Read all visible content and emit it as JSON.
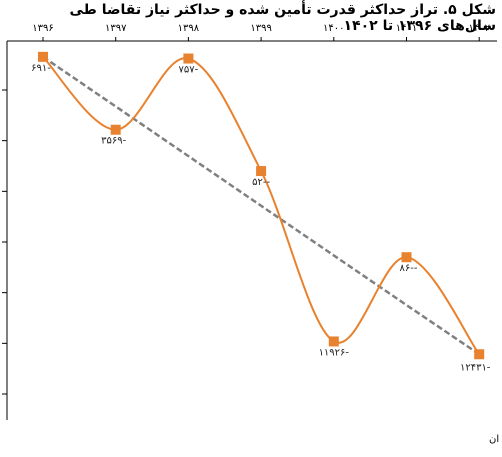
{
  "chart_data": {
    "type": "line",
    "title": "شکل ۵. تراز حداکثر قدرت تأمین شده و حداکثر نیاز تقاضا طی سال‌های ۱۳۹۶ تا ۱۴۰۲",
    "categories": [
      "۱۳۹۶",
      "۱۳۹۷",
      "۱۳۹۸",
      "۱۳۹۹",
      "۱۴۰۰",
      "۱۴۰۱",
      "۱۴۰۲"
    ],
    "x": [
      1396,
      1397,
      1398,
      1399,
      1400,
      1401,
      1402
    ],
    "series": [
      {
        "values": [
          -691,
          -3569,
          -757,
          -5200,
          -11926,
          -8600,
          -12431
        ],
        "data_labels": [
          "۶۹۱-",
          "۳۵۶۹-",
          "۷۵۷-",
          "۵۲--",
          "۱۱۹۲۶-",
          "۸۶--",
          "۱۲۴۳۱-"
        ],
        "color": "#E8822F",
        "marker": "square",
        "smooth": true
      },
      {
        "type": "trendline",
        "style": "dashed",
        "color": "#808080",
        "values": [
          -691,
          -2650,
          -4610,
          -6570,
          -8530,
          -10490,
          -12431
        ]
      }
    ],
    "xaxis_position": "top",
    "ylim": [
      -14000,
      1000
    ],
    "y_ticks": [
      0,
      -2000,
      -4000,
      -6000,
      -8000,
      -10000,
      -12000,
      -14000
    ],
    "y_tick_labels_visible": false,
    "grid": false,
    "unit_fragment": "ان"
  }
}
